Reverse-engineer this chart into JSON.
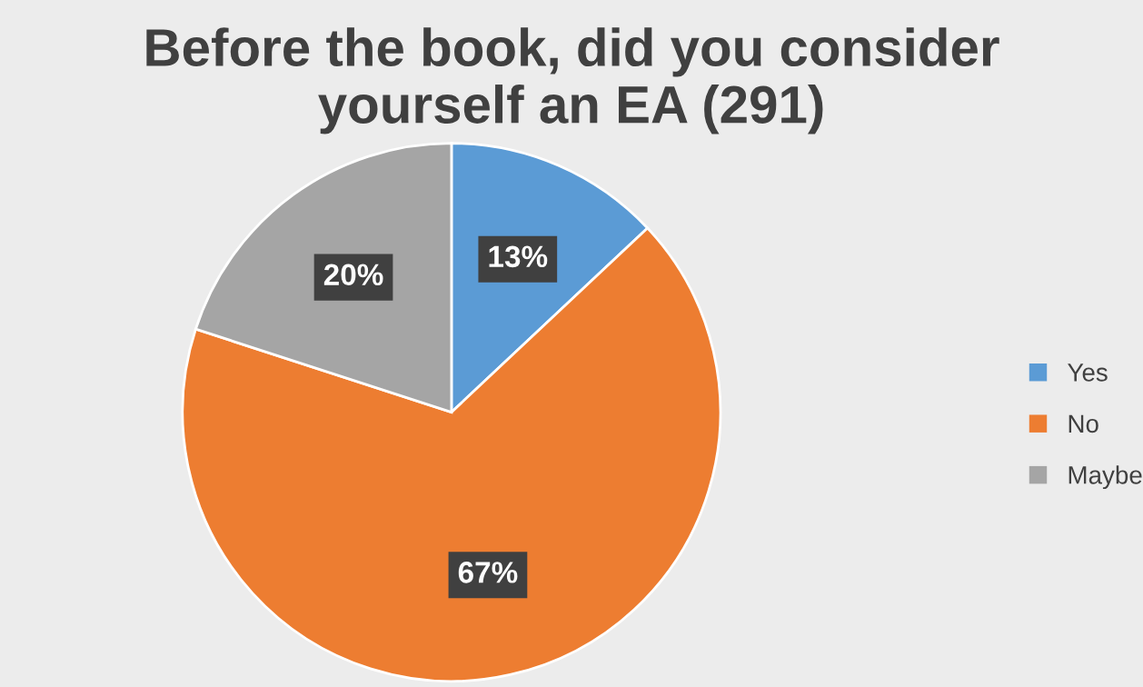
{
  "chart_data": {
    "type": "pie",
    "title": "Before the book, did you consider\nyourself an EA (291)",
    "categories": [
      "Yes",
      "No",
      "Maybe"
    ],
    "values": [
      13,
      67,
      20
    ],
    "colors": [
      "#5b9bd5",
      "#ed7d31",
      "#a5a5a5"
    ],
    "value_labels": [
      "13%",
      "67%",
      "20%"
    ],
    "legend": "right"
  }
}
